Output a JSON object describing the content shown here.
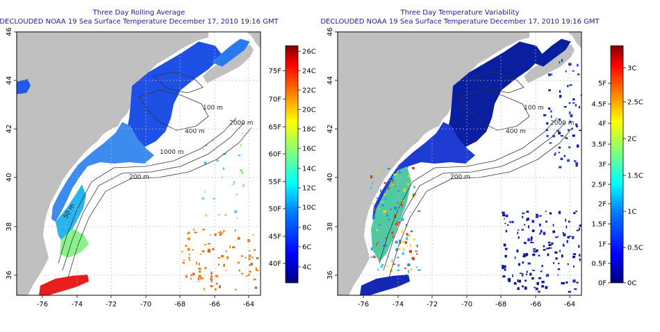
{
  "panels": [
    {
      "title_line1": "Three Day Rolling Average",
      "title_line2": "DECLOUDED NOAA 19 Sea Surface Temperature December 17, 2010 19:16 GMT",
      "x_ticks": [
        "-76",
        "-74",
        "-72",
        "-70",
        "-68",
        "-66",
        "-64"
      ],
      "y_ticks": [
        "36",
        "38",
        "40",
        "42",
        "44",
        "46"
      ],
      "contour_labels": [
        "100 m",
        "400 m",
        "2000 m",
        "200 m",
        "1000 m",
        "50 m"
      ],
      "colorbar_celsius": [
        "26C",
        "24C",
        "22C",
        "20C",
        "18C",
        "16C",
        "14C",
        "12C",
        "10C",
        "8C",
        "6C",
        "4C"
      ],
      "colorbar_fahrenheit": [
        "75F",
        "70F",
        "65F",
        "60F",
        "55F",
        "50F",
        "45F",
        "40F"
      ]
    },
    {
      "title_line1": "Three Day Temperature Variability",
      "title_line2": "DECLOUDED NOAA 19 Sea Surface Temperature December 17, 2010 19:16 GMT",
      "x_ticks": [
        "-76",
        "-74",
        "-72",
        "-70",
        "-68",
        "-66",
        "-64"
      ],
      "y_ticks": [
        "36",
        "38",
        "40",
        "42",
        "44",
        "46"
      ],
      "contour_labels": [
        "100 m",
        "400 m",
        "2000 m",
        "200 m"
      ],
      "colorbar_celsius": [
        "3C",
        "2.5C",
        "2C",
        "1.5C",
        "1C",
        "0.5C",
        "0C"
      ],
      "colorbar_fahrenheit": [
        "5F",
        "4.5F",
        "4F",
        "3.5F",
        "3F",
        "2.5F",
        "2F",
        "1.5F",
        "1F",
        "0.5F",
        "0F"
      ]
    }
  ],
  "colors": {
    "land": "#c0c0c0",
    "ocean_nodata": "#ffffff",
    "title": "#1a1aa0",
    "colorbar_stops": [
      "#00007f",
      "#0000ff",
      "#007fff",
      "#00ffff",
      "#7fff7f",
      "#ffff00",
      "#ff7f00",
      "#ff0000",
      "#7f0000"
    ]
  }
}
